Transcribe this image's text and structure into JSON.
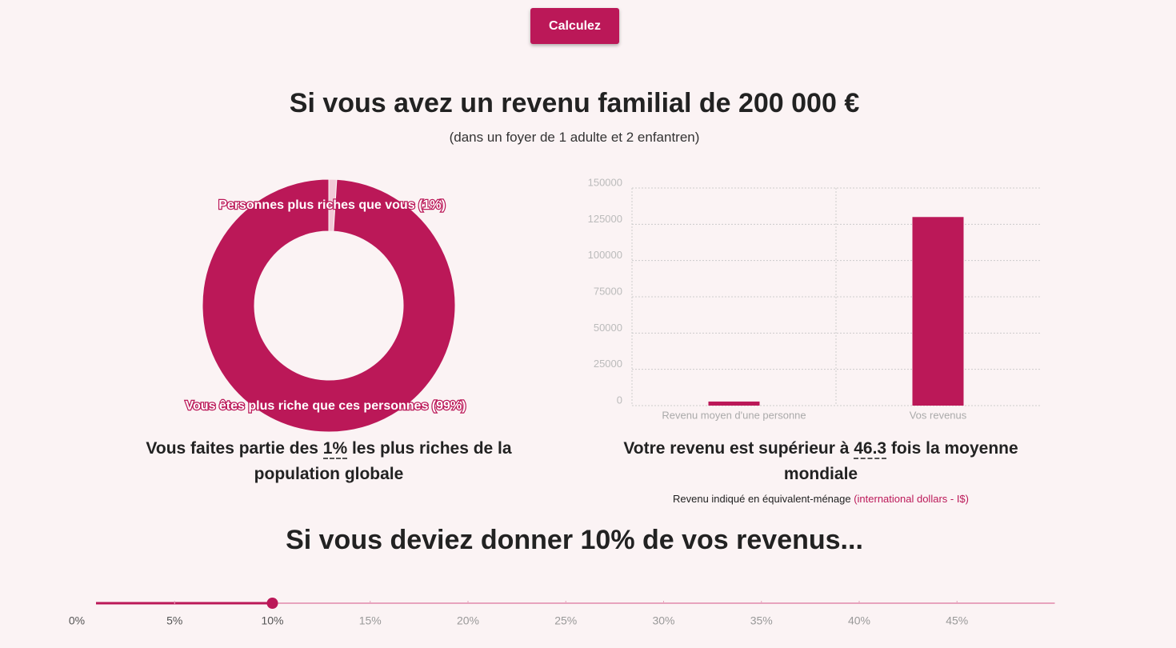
{
  "button": "Calculez",
  "heading": "Si vous avez un revenu familial de 200 000 €",
  "subheading": "(dans un foyer de 1 adulte et 2 enfantren)",
  "chart_data": [
    {
      "type": "donut",
      "categories": [
        "Personnes plus riches que vous (1%)",
        "Vous êtes plus riche que ces personnes (99%)"
      ],
      "values": [
        1,
        99
      ],
      "colors": [
        "#f2c9d7",
        "#bb1858"
      ]
    },
    {
      "type": "bar",
      "categories": [
        "Revenu moyen d'une personne",
        "Vos revenus"
      ],
      "values": [
        2800,
        130000
      ],
      "color": "#bb1858",
      "ylim": [
        0,
        150000
      ],
      "yticks": [
        0,
        25000,
        50000,
        75000,
        100000,
        125000,
        150000
      ],
      "grid": true
    }
  ],
  "summary_left": {
    "before": "Vous faites partie des ",
    "highlight": "1%",
    "after": " les plus riches de la population globale"
  },
  "summary_right": {
    "before": "Votre revenu est supérieur à ",
    "highlight": "46.3",
    "after": " fois la moyenne mondiale"
  },
  "note": {
    "text": "Revenu indiqué en équivalent-ménage ",
    "link": "(international dollars - I$)"
  },
  "heading2": "Si vous deviez donner 10% de vos revenus...",
  "slider": {
    "value": 10,
    "xlim": [
      0,
      50
    ],
    "ticks": [
      {
        "value": 0,
        "label": "0%"
      },
      {
        "value": 5,
        "label": "5%"
      },
      {
        "value": 10,
        "label": "10%"
      },
      {
        "value": 15,
        "label": "15%"
      },
      {
        "value": 20,
        "label": "20%"
      },
      {
        "value": 25,
        "label": "25%"
      },
      {
        "value": 30,
        "label": "30%"
      },
      {
        "value": 35,
        "label": "35%"
      },
      {
        "value": 40,
        "label": "40%"
      },
      {
        "value": 45,
        "label": "45%"
      }
    ]
  }
}
